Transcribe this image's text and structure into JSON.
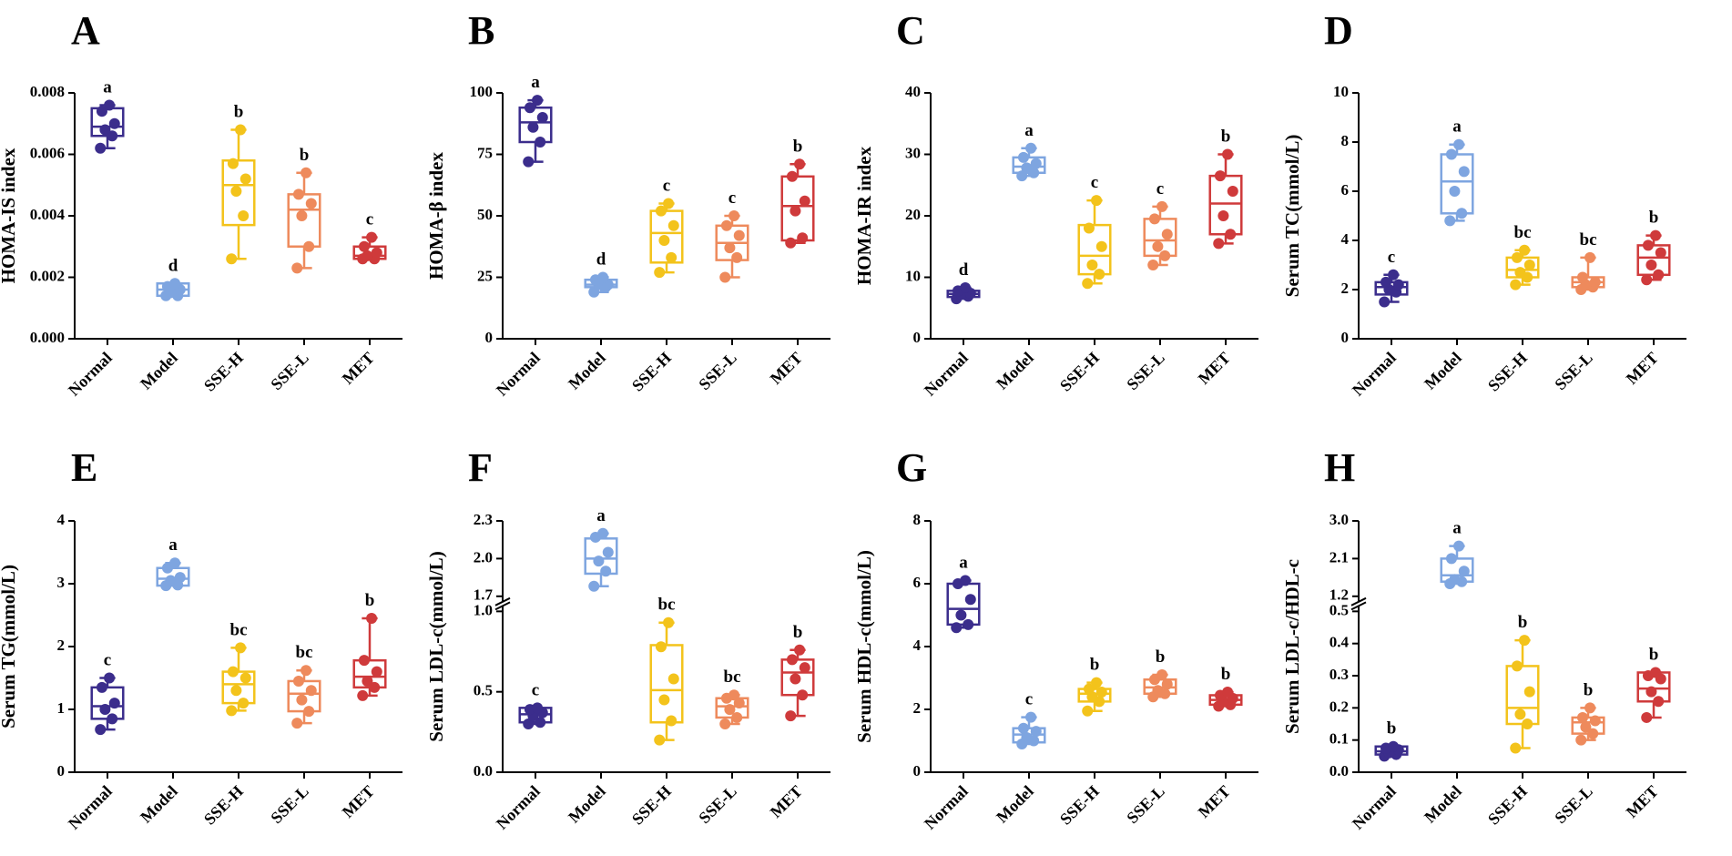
{
  "chart_data": [
    {
      "type": "box",
      "panel": "A",
      "ylabel": "HOMA-IS index",
      "ylim": [
        0,
        0.008
      ],
      "yticks": [
        {
          "value": 0,
          "label": "0.000"
        },
        0.002,
        0.004,
        0.006,
        0.008
      ],
      "groups": [
        {
          "name": "Normal",
          "color": "#3b2d8c",
          "min": 0.0062,
          "q1": 0.0066,
          "median": 0.0069,
          "q3": 0.0075,
          "max": 0.0076,
          "points": [
            0.0062,
            0.0066,
            0.0068,
            0.007,
            0.0074,
            0.0076
          ],
          "label": "a"
        },
        {
          "name": "Model",
          "color": "#7ea5e0",
          "min": 0.0014,
          "q1": 0.0014,
          "median": 0.0016,
          "q3": 0.0018,
          "max": 0.0018,
          "points": [
            0.0014,
            0.0014,
            0.0015,
            0.0016,
            0.0017,
            0.0018
          ],
          "label": "d"
        },
        {
          "name": "SSE-H",
          "color": "#f3c31b",
          "min": 0.0026,
          "q1": 0.0037,
          "median": 0.005,
          "q3": 0.0058,
          "max": 0.0068,
          "points": [
            0.0026,
            0.004,
            0.0048,
            0.0052,
            0.0057,
            0.0068
          ],
          "label": "b"
        },
        {
          "name": "SSE-L",
          "color": "#ee8a5c",
          "min": 0.0023,
          "q1": 0.003,
          "median": 0.0042,
          "q3": 0.0047,
          "max": 0.0054,
          "points": [
            0.0023,
            0.003,
            0.004,
            0.0044,
            0.0047,
            0.0054
          ],
          "label": "b"
        },
        {
          "name": "MET",
          "color": "#cf3a3b",
          "min": 0.0026,
          "q1": 0.0026,
          "median": 0.0027,
          "q3": 0.003,
          "max": 0.0033,
          "points": [
            0.0026,
            0.0026,
            0.0027,
            0.0028,
            0.003,
            0.0033
          ],
          "label": "c"
        }
      ]
    },
    {
      "type": "box",
      "panel": "B",
      "ylabel": "HOMA-β index",
      "ylim": [
        0,
        100
      ],
      "yticks": [
        0,
        25,
        50,
        75,
        100
      ],
      "groups": [
        {
          "name": "Normal",
          "color": "#3b2d8c",
          "min": 72,
          "q1": 80,
          "median": 88,
          "q3": 94,
          "max": 97,
          "points": [
            72,
            80,
            86,
            90,
            94,
            97
          ],
          "label": "a"
        },
        {
          "name": "Model",
          "color": "#7ea5e0",
          "min": 19,
          "q1": 21,
          "median": 22,
          "q3": 24,
          "max": 25,
          "points": [
            19,
            21,
            22,
            22,
            24,
            25
          ],
          "label": "d"
        },
        {
          "name": "SSE-H",
          "color": "#f3c31b",
          "min": 27,
          "q1": 31,
          "median": 43,
          "q3": 52,
          "max": 55,
          "points": [
            27,
            33,
            40,
            46,
            52,
            55
          ],
          "label": "c"
        },
        {
          "name": "SSE-L",
          "color": "#ee8a5c",
          "min": 25,
          "q1": 32,
          "median": 39,
          "q3": 46,
          "max": 50,
          "points": [
            25,
            33,
            37,
            42,
            46,
            50
          ],
          "label": "c"
        },
        {
          "name": "MET",
          "color": "#cf3a3b",
          "min": 39,
          "q1": 40,
          "median": 54,
          "q3": 66,
          "max": 71,
          "points": [
            39,
            41,
            52,
            56,
            66,
            71
          ],
          "label": "b"
        }
      ]
    },
    {
      "type": "box",
      "panel": "C",
      "ylabel": "HOMA-IR index",
      "ylim": [
        0,
        40
      ],
      "yticks": [
        0,
        10,
        20,
        30,
        40
      ],
      "groups": [
        {
          "name": "Normal",
          "color": "#3b2d8c",
          "min": 6.5,
          "q1": 6.8,
          "median": 7.3,
          "q3": 7.8,
          "max": 8.3,
          "points": [
            6.5,
            6.9,
            7.2,
            7.4,
            7.8,
            8.3
          ],
          "label": "d"
        },
        {
          "name": "Model",
          "color": "#7ea5e0",
          "min": 26.5,
          "q1": 27,
          "median": 28,
          "q3": 29.5,
          "max": 31,
          "points": [
            26.5,
            27,
            27.8,
            28.5,
            29.5,
            31
          ],
          "label": "a"
        },
        {
          "name": "SSE-H",
          "color": "#f3c31b",
          "min": 9,
          "q1": 10.5,
          "median": 13.5,
          "q3": 18.5,
          "max": 22.5,
          "points": [
            9,
            10.5,
            12,
            15,
            18,
            22.5
          ],
          "label": "c"
        },
        {
          "name": "SSE-L",
          "color": "#ee8a5c",
          "min": 12,
          "q1": 13.5,
          "median": 16,
          "q3": 19.5,
          "max": 21.5,
          "points": [
            12,
            13.5,
            15,
            17,
            19.5,
            21.5
          ],
          "label": "c"
        },
        {
          "name": "MET",
          "color": "#cf3a3b",
          "min": 15.5,
          "q1": 17,
          "median": 22,
          "q3": 26.5,
          "max": 30,
          "points": [
            15.5,
            17,
            20,
            24,
            26.5,
            30
          ],
          "label": "b"
        }
      ]
    },
    {
      "type": "box",
      "panel": "D",
      "ylabel": "Serum TC(mmol/L)",
      "ylim": [
        0,
        10
      ],
      "yticks": [
        0,
        2,
        4,
        6,
        8,
        10
      ],
      "groups": [
        {
          "name": "Normal",
          "color": "#3b2d8c",
          "min": 1.5,
          "q1": 1.8,
          "median": 2.1,
          "q3": 2.3,
          "max": 2.6,
          "points": [
            1.5,
            1.9,
            2.0,
            2.2,
            2.3,
            2.6
          ],
          "label": "c"
        },
        {
          "name": "Model",
          "color": "#7ea5e0",
          "min": 4.8,
          "q1": 5.1,
          "median": 6.4,
          "q3": 7.5,
          "max": 7.9,
          "points": [
            4.8,
            5.1,
            6.0,
            6.8,
            7.5,
            7.9
          ],
          "label": "a"
        },
        {
          "name": "SSE-H",
          "color": "#f3c31b",
          "min": 2.2,
          "q1": 2.5,
          "median": 2.8,
          "q3": 3.3,
          "max": 3.6,
          "points": [
            2.2,
            2.5,
            2.7,
            3.0,
            3.3,
            3.6
          ],
          "label": "bc"
        },
        {
          "name": "SSE-L",
          "color": "#ee8a5c",
          "min": 2.0,
          "q1": 2.1,
          "median": 2.3,
          "q3": 2.5,
          "max": 3.3,
          "points": [
            2.0,
            2.1,
            2.2,
            2.3,
            2.5,
            3.3
          ],
          "label": "bc"
        },
        {
          "name": "MET",
          "color": "#cf3a3b",
          "min": 2.4,
          "q1": 2.6,
          "median": 3.3,
          "q3": 3.8,
          "max": 4.2,
          "points": [
            2.4,
            2.6,
            3.0,
            3.5,
            3.8,
            4.2
          ],
          "label": "b"
        }
      ]
    },
    {
      "type": "box",
      "panel": "E",
      "ylabel": "Serum TG(mmol/L)",
      "ylim": [
        0,
        4
      ],
      "yticks": [
        0,
        1,
        2,
        3,
        4
      ],
      "groups": [
        {
          "name": "Normal",
          "color": "#3b2d8c",
          "min": 0.68,
          "q1": 0.85,
          "median": 1.05,
          "q3": 1.35,
          "max": 1.5,
          "points": [
            0.68,
            0.85,
            1.0,
            1.1,
            1.35,
            1.5
          ],
          "label": "c"
        },
        {
          "name": "Model",
          "color": "#7ea5e0",
          "min": 2.97,
          "q1": 2.97,
          "median": 3.08,
          "q3": 3.25,
          "max": 3.33,
          "points": [
            2.97,
            2.98,
            3.05,
            3.1,
            3.25,
            3.33
          ],
          "label": "a"
        },
        {
          "name": "SSE-H",
          "color": "#f3c31b",
          "min": 0.98,
          "q1": 1.1,
          "median": 1.4,
          "q3": 1.6,
          "max": 1.98,
          "points": [
            0.98,
            1.1,
            1.3,
            1.5,
            1.6,
            1.98
          ],
          "label": "bc"
        },
        {
          "name": "SSE-L",
          "color": "#ee8a5c",
          "min": 0.78,
          "q1": 0.97,
          "median": 1.25,
          "q3": 1.45,
          "max": 1.62,
          "points": [
            0.78,
            0.97,
            1.15,
            1.3,
            1.45,
            1.62
          ],
          "label": "bc"
        },
        {
          "name": "MET",
          "color": "#cf3a3b",
          "min": 1.22,
          "q1": 1.35,
          "median": 1.52,
          "q3": 1.78,
          "max": 2.45,
          "points": [
            1.22,
            1.35,
            1.45,
            1.6,
            1.78,
            2.45
          ],
          "label": "b"
        }
      ]
    },
    {
      "type": "box",
      "panel": "F",
      "ylabel": "Serum LDL-c(mmol/L)",
      "ylim": [
        0,
        1.0
      ],
      "yticks": [
        {
          "value": 0,
          "label": "0.0"
        },
        0.5,
        {
          "value": 1.0,
          "label": "1.0"
        }
      ],
      "ylim_upper": [
        1.7,
        2.3
      ],
      "yticks_upper": [
        1.7,
        {
          "value": 2.0,
          "label": "2.0"
        },
        2.3
      ],
      "groups": [
        {
          "name": "Normal",
          "color": "#3b2d8c",
          "min": 0.3,
          "q1": 0.31,
          "median": 0.36,
          "q3": 0.4,
          "max": 0.4,
          "points": [
            0.3,
            0.31,
            0.35,
            0.37,
            0.39,
            0.4
          ],
          "label": "c"
        },
        {
          "name": "Model",
          "color": "#7ea5e0",
          "min": 1.78,
          "q1": 1.88,
          "median": 2.0,
          "q3": 2.16,
          "max": 2.2,
          "points": [
            1.78,
            1.9,
            1.98,
            2.05,
            2.17,
            2.2
          ],
          "label": "a"
        },
        {
          "name": "SSE-H",
          "color": "#f3c31b",
          "min": 0.2,
          "q1": 0.31,
          "median": 0.51,
          "q3": 0.79,
          "max": 0.93,
          "points": [
            0.2,
            0.32,
            0.45,
            0.58,
            0.78,
            0.93
          ],
          "label": "bc"
        },
        {
          "name": "SSE-L",
          "color": "#ee8a5c",
          "min": 0.3,
          "q1": 0.34,
          "median": 0.41,
          "q3": 0.46,
          "max": 0.48,
          "points": [
            0.3,
            0.34,
            0.39,
            0.43,
            0.46,
            0.48
          ],
          "label": "bc"
        },
        {
          "name": "MET",
          "color": "#cf3a3b",
          "min": 0.35,
          "q1": 0.48,
          "median": 0.62,
          "q3": 0.7,
          "max": 0.76,
          "points": [
            0.35,
            0.48,
            0.58,
            0.65,
            0.7,
            0.76
          ],
          "label": "b"
        }
      ]
    },
    {
      "type": "box",
      "panel": "G",
      "ylabel": "Serum HDL-c(mmol/L)",
      "ylim": [
        0,
        8
      ],
      "yticks": [
        0,
        2,
        4,
        6,
        8
      ],
      "groups": [
        {
          "name": "Normal",
          "color": "#3b2d8c",
          "min": 4.6,
          "q1": 4.7,
          "median": 5.2,
          "q3": 6.0,
          "max": 6.1,
          "points": [
            4.6,
            4.7,
            5.0,
            5.5,
            6.0,
            6.1
          ],
          "label": "a"
        },
        {
          "name": "Model",
          "color": "#7ea5e0",
          "min": 0.9,
          "q1": 0.95,
          "median": 1.2,
          "q3": 1.4,
          "max": 1.75,
          "points": [
            0.9,
            1.0,
            1.1,
            1.3,
            1.4,
            1.75
          ],
          "label": "c"
        },
        {
          "name": "SSE-H",
          "color": "#f3c31b",
          "min": 1.95,
          "q1": 2.25,
          "median": 2.5,
          "q3": 2.65,
          "max": 2.85,
          "points": [
            1.95,
            2.25,
            2.4,
            2.55,
            2.65,
            2.85
          ],
          "label": "b"
        },
        {
          "name": "SSE-L",
          "color": "#ee8a5c",
          "min": 2.4,
          "q1": 2.5,
          "median": 2.7,
          "q3": 2.95,
          "max": 3.1,
          "points": [
            2.4,
            2.5,
            2.6,
            2.8,
            2.95,
            3.1
          ],
          "label": "b"
        },
        {
          "name": "MET",
          "color": "#cf3a3b",
          "min": 2.1,
          "q1": 2.15,
          "median": 2.3,
          "q3": 2.45,
          "max": 2.55,
          "points": [
            2.1,
            2.15,
            2.25,
            2.35,
            2.45,
            2.55
          ],
          "label": "b"
        }
      ]
    },
    {
      "type": "box",
      "panel": "H",
      "ylabel": "Serum LDL-c/HDL-c",
      "ylim": [
        0,
        0.5
      ],
      "yticks": [
        {
          "value": 0,
          "label": "0.0"
        },
        0.1,
        0.2,
        0.3,
        0.4,
        0.5
      ],
      "ylim_upper": [
        1.2,
        3.0
      ],
      "yticks_upper": [
        1.2,
        2.1,
        {
          "value": 3.0,
          "label": "3.0"
        }
      ],
      "groups": [
        {
          "name": "Normal",
          "color": "#3b2d8c",
          "min": 0.05,
          "q1": 0.055,
          "median": 0.065,
          "q3": 0.08,
          "max": 0.08,
          "points": [
            0.05,
            0.055,
            0.06,
            0.07,
            0.075,
            0.08
          ],
          "label": "b"
        },
        {
          "name": "Model",
          "color": "#7ea5e0",
          "min": 1.5,
          "q1": 1.55,
          "median": 1.7,
          "q3": 2.1,
          "max": 2.4,
          "points": [
            1.5,
            1.55,
            1.6,
            1.8,
            2.1,
            2.4
          ],
          "label": "a"
        },
        {
          "name": "SSE-H",
          "color": "#f3c31b",
          "min": 0.075,
          "q1": 0.15,
          "median": 0.2,
          "q3": 0.33,
          "max": 0.41,
          "points": [
            0.075,
            0.15,
            0.18,
            0.25,
            0.33,
            0.41
          ],
          "label": "b"
        },
        {
          "name": "SSE-L",
          "color": "#ee8a5c",
          "min": 0.1,
          "q1": 0.12,
          "median": 0.155,
          "q3": 0.17,
          "max": 0.2,
          "points": [
            0.1,
            0.12,
            0.14,
            0.16,
            0.17,
            0.2
          ],
          "label": "b"
        },
        {
          "name": "MET",
          "color": "#cf3a3b",
          "min": 0.17,
          "q1": 0.22,
          "median": 0.26,
          "q3": 0.31,
          "max": 0.31,
          "points": [
            0.17,
            0.22,
            0.25,
            0.29,
            0.3,
            0.31
          ],
          "label": "b"
        }
      ]
    }
  ]
}
